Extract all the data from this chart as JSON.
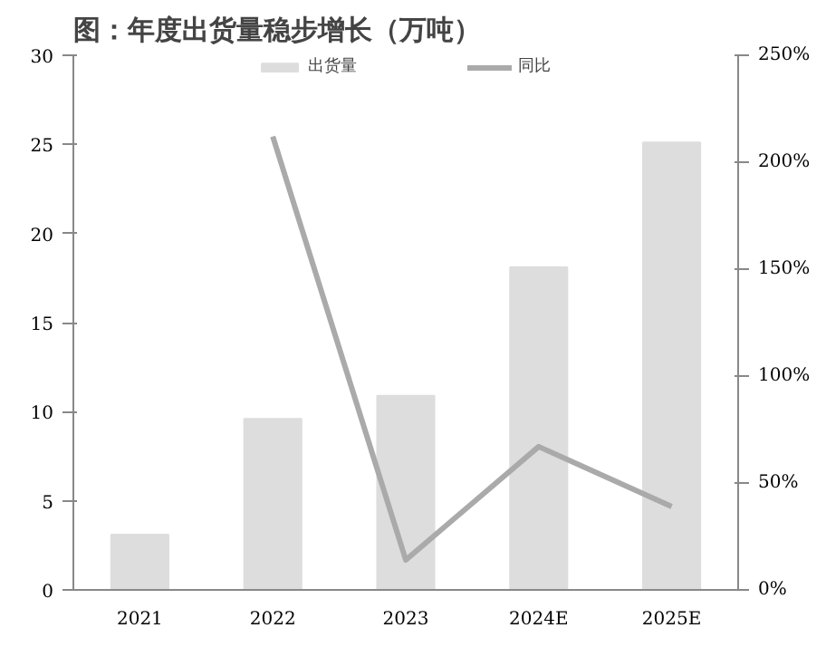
{
  "chart_data": {
    "type": "bar",
    "title": "图：年度出货量稳步增长（万吨）",
    "categories": [
      "2021",
      "2022",
      "2023",
      "2024E",
      "2025E"
    ],
    "series": [
      {
        "name": "出货量",
        "color": "#dddddd",
        "values": [
          3.1,
          9.6,
          10.9,
          18.1,
          25.1
        ]
      },
      {
        "name": "同比",
        "type": "line",
        "axis": "y2",
        "color": "#aaaaaa",
        "values": [
          null,
          212,
          14,
          67,
          39
        ]
      }
    ],
    "ylim": [
      0,
      30
    ],
    "yticks": [
      0,
      5,
      10,
      15,
      20,
      25,
      30
    ],
    "y2lim": [
      0,
      250
    ],
    "y2ticks": [
      {
        "value": 0,
        "label": "0%"
      },
      {
        "value": 50,
        "label": "50%"
      },
      {
        "value": 100,
        "label": "100%"
      },
      {
        "value": 150,
        "label": "150%"
      },
      {
        "value": 200,
        "label": "200%"
      },
      {
        "value": 250,
        "label": "250%"
      }
    ],
    "legend": "top",
    "grid": false,
    "marker": "none",
    "line_style": "solid"
  }
}
